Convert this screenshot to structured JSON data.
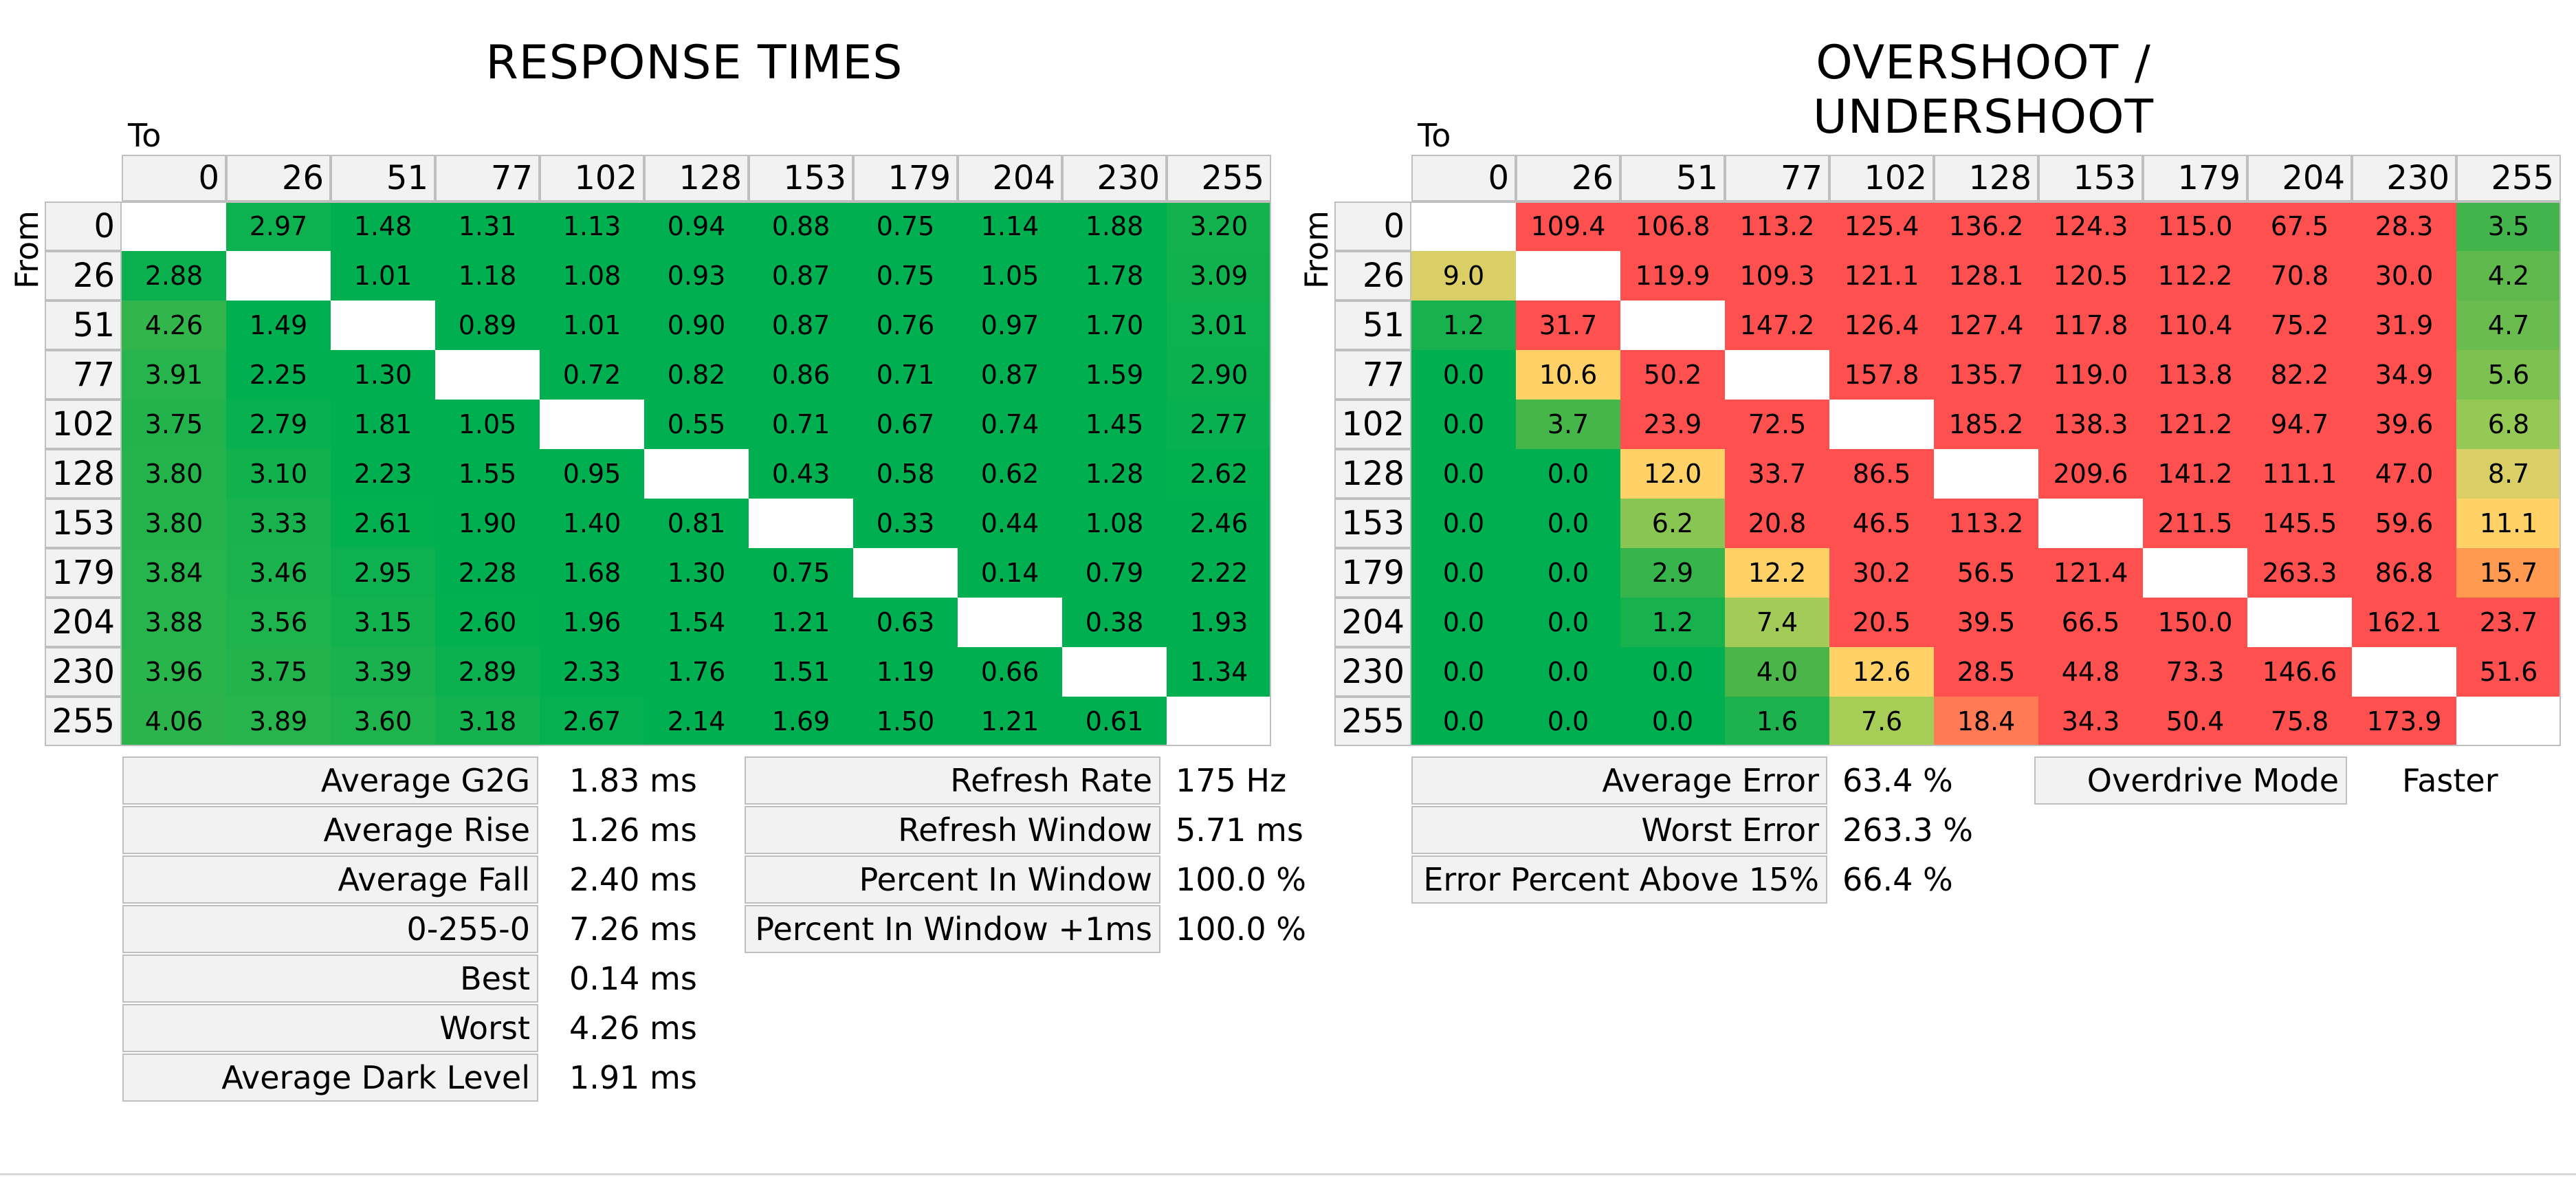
{
  "chart_data": [
    {
      "type": "heatmap",
      "title": "RESPONSE TIMES",
      "xlabel": "To",
      "ylabel": "From",
      "x": [
        0,
        26,
        51,
        77,
        102,
        128,
        153,
        179,
        204,
        230,
        255
      ],
      "y": [
        0,
        26,
        51,
        77,
        102,
        128,
        153,
        179,
        204,
        230,
        255
      ],
      "values": [
        [
          null,
          2.97,
          1.48,
          1.31,
          1.13,
          0.94,
          0.88,
          0.75,
          1.14,
          1.88,
          3.2
        ],
        [
          2.88,
          null,
          1.01,
          1.18,
          1.08,
          0.93,
          0.87,
          0.75,
          1.05,
          1.78,
          3.09
        ],
        [
          4.26,
          1.49,
          null,
          0.89,
          1.01,
          0.9,
          0.87,
          0.76,
          0.97,
          1.7,
          3.01
        ],
        [
          3.91,
          2.25,
          1.3,
          null,
          0.72,
          0.82,
          0.86,
          0.71,
          0.87,
          1.59,
          2.9
        ],
        [
          3.75,
          2.79,
          1.81,
          1.05,
          null,
          0.55,
          0.71,
          0.67,
          0.74,
          1.45,
          2.77
        ],
        [
          3.8,
          3.1,
          2.23,
          1.55,
          0.95,
          null,
          0.43,
          0.58,
          0.62,
          1.28,
          2.62
        ],
        [
          3.8,
          3.33,
          2.61,
          1.9,
          1.4,
          0.81,
          null,
          0.33,
          0.44,
          1.08,
          2.46
        ],
        [
          3.84,
          3.46,
          2.95,
          2.28,
          1.68,
          1.3,
          0.75,
          null,
          0.14,
          0.79,
          2.22
        ],
        [
          3.88,
          3.56,
          3.15,
          2.6,
          1.96,
          1.54,
          1.21,
          0.63,
          null,
          0.38,
          1.93
        ],
        [
          3.96,
          3.75,
          3.39,
          2.89,
          2.33,
          1.76,
          1.51,
          1.19,
          0.66,
          null,
          1.34
        ],
        [
          4.06,
          3.89,
          3.6,
          3.18,
          2.67,
          2.14,
          1.69,
          1.5,
          1.21,
          0.61,
          null
        ]
      ],
      "decimals": 2
    },
    {
      "type": "heatmap",
      "title": "OVERSHOOT / UNDERSHOOT",
      "xlabel": "To",
      "ylabel": "From",
      "x": [
        0,
        26,
        51,
        77,
        102,
        128,
        153,
        179,
        204,
        230,
        255
      ],
      "y": [
        0,
        26,
        51,
        77,
        102,
        128,
        153,
        179,
        204,
        230,
        255
      ],
      "values": [
        [
          null,
          109.4,
          106.8,
          113.2,
          125.4,
          136.2,
          124.3,
          115.0,
          67.5,
          28.3,
          3.5
        ],
        [
          9.0,
          null,
          119.9,
          109.3,
          121.1,
          128.1,
          120.5,
          112.2,
          70.8,
          30.0,
          4.2
        ],
        [
          1.2,
          31.7,
          null,
          147.2,
          126.4,
          127.4,
          117.8,
          110.4,
          75.2,
          31.9,
          4.7
        ],
        [
          0.0,
          10.6,
          50.2,
          null,
          157.8,
          135.7,
          119.0,
          113.8,
          82.2,
          34.9,
          5.6
        ],
        [
          0.0,
          3.7,
          23.9,
          72.5,
          null,
          185.2,
          138.3,
          121.2,
          94.7,
          39.6,
          6.8
        ],
        [
          0.0,
          0.0,
          12.0,
          33.7,
          86.5,
          null,
          209.6,
          141.2,
          111.1,
          47.0,
          8.7
        ],
        [
          0.0,
          0.0,
          6.2,
          20.8,
          46.5,
          113.2,
          null,
          211.5,
          145.5,
          59.6,
          11.1
        ],
        [
          0.0,
          0.0,
          2.9,
          12.2,
          30.2,
          56.5,
          121.4,
          null,
          263.3,
          86.8,
          15.7
        ],
        [
          0.0,
          0.0,
          1.2,
          7.4,
          20.5,
          39.5,
          66.5,
          150.0,
          null,
          162.1,
          23.7
        ],
        [
          0.0,
          0.0,
          0.0,
          4.0,
          12.6,
          28.5,
          44.8,
          73.3,
          146.6,
          null,
          51.6
        ],
        [
          0.0,
          0.0,
          0.0,
          1.6,
          7.6,
          18.4,
          34.3,
          50.4,
          75.8,
          173.9,
          null
        ]
      ],
      "decimals": 1
    }
  ],
  "response_stats": [
    {
      "label": "Average G2G",
      "value": "1.83 ms"
    },
    {
      "label": "Average Rise",
      "value": "1.26 ms"
    },
    {
      "label": "Average Fall",
      "value": "2.40 ms"
    },
    {
      "label": "0-255-0",
      "value": "7.26 ms"
    },
    {
      "label": "Best",
      "value": "0.14 ms"
    },
    {
      "label": "Worst",
      "value": "4.26 ms"
    },
    {
      "label": "Average Dark Level",
      "value": "1.91 ms"
    }
  ],
  "refresh_stats": [
    {
      "label": "Refresh Rate",
      "value": "175 Hz"
    },
    {
      "label": "Refresh Window",
      "value": "5.71 ms"
    },
    {
      "label": "Percent In Window",
      "value": "100.0 %"
    },
    {
      "label": "Percent In Window +1ms",
      "value": "100.0 %"
    }
  ],
  "error_stats": [
    {
      "label": "Average Error",
      "value": "63.4 %"
    },
    {
      "label": "Worst Error",
      "value": "263.3 %"
    },
    {
      "label": "Error Percent Above 15%",
      "value": "66.4 %"
    }
  ],
  "mode_stats": [
    {
      "label": "Overdrive Mode",
      "value": "Faster"
    }
  ],
  "colors": {
    "good": "#00b050",
    "ok": "#92d050",
    "warn": "#ffd966",
    "bad": "#ff5050",
    "header_bg": "#f2f2f2",
    "border": "#bfbfbf"
  }
}
